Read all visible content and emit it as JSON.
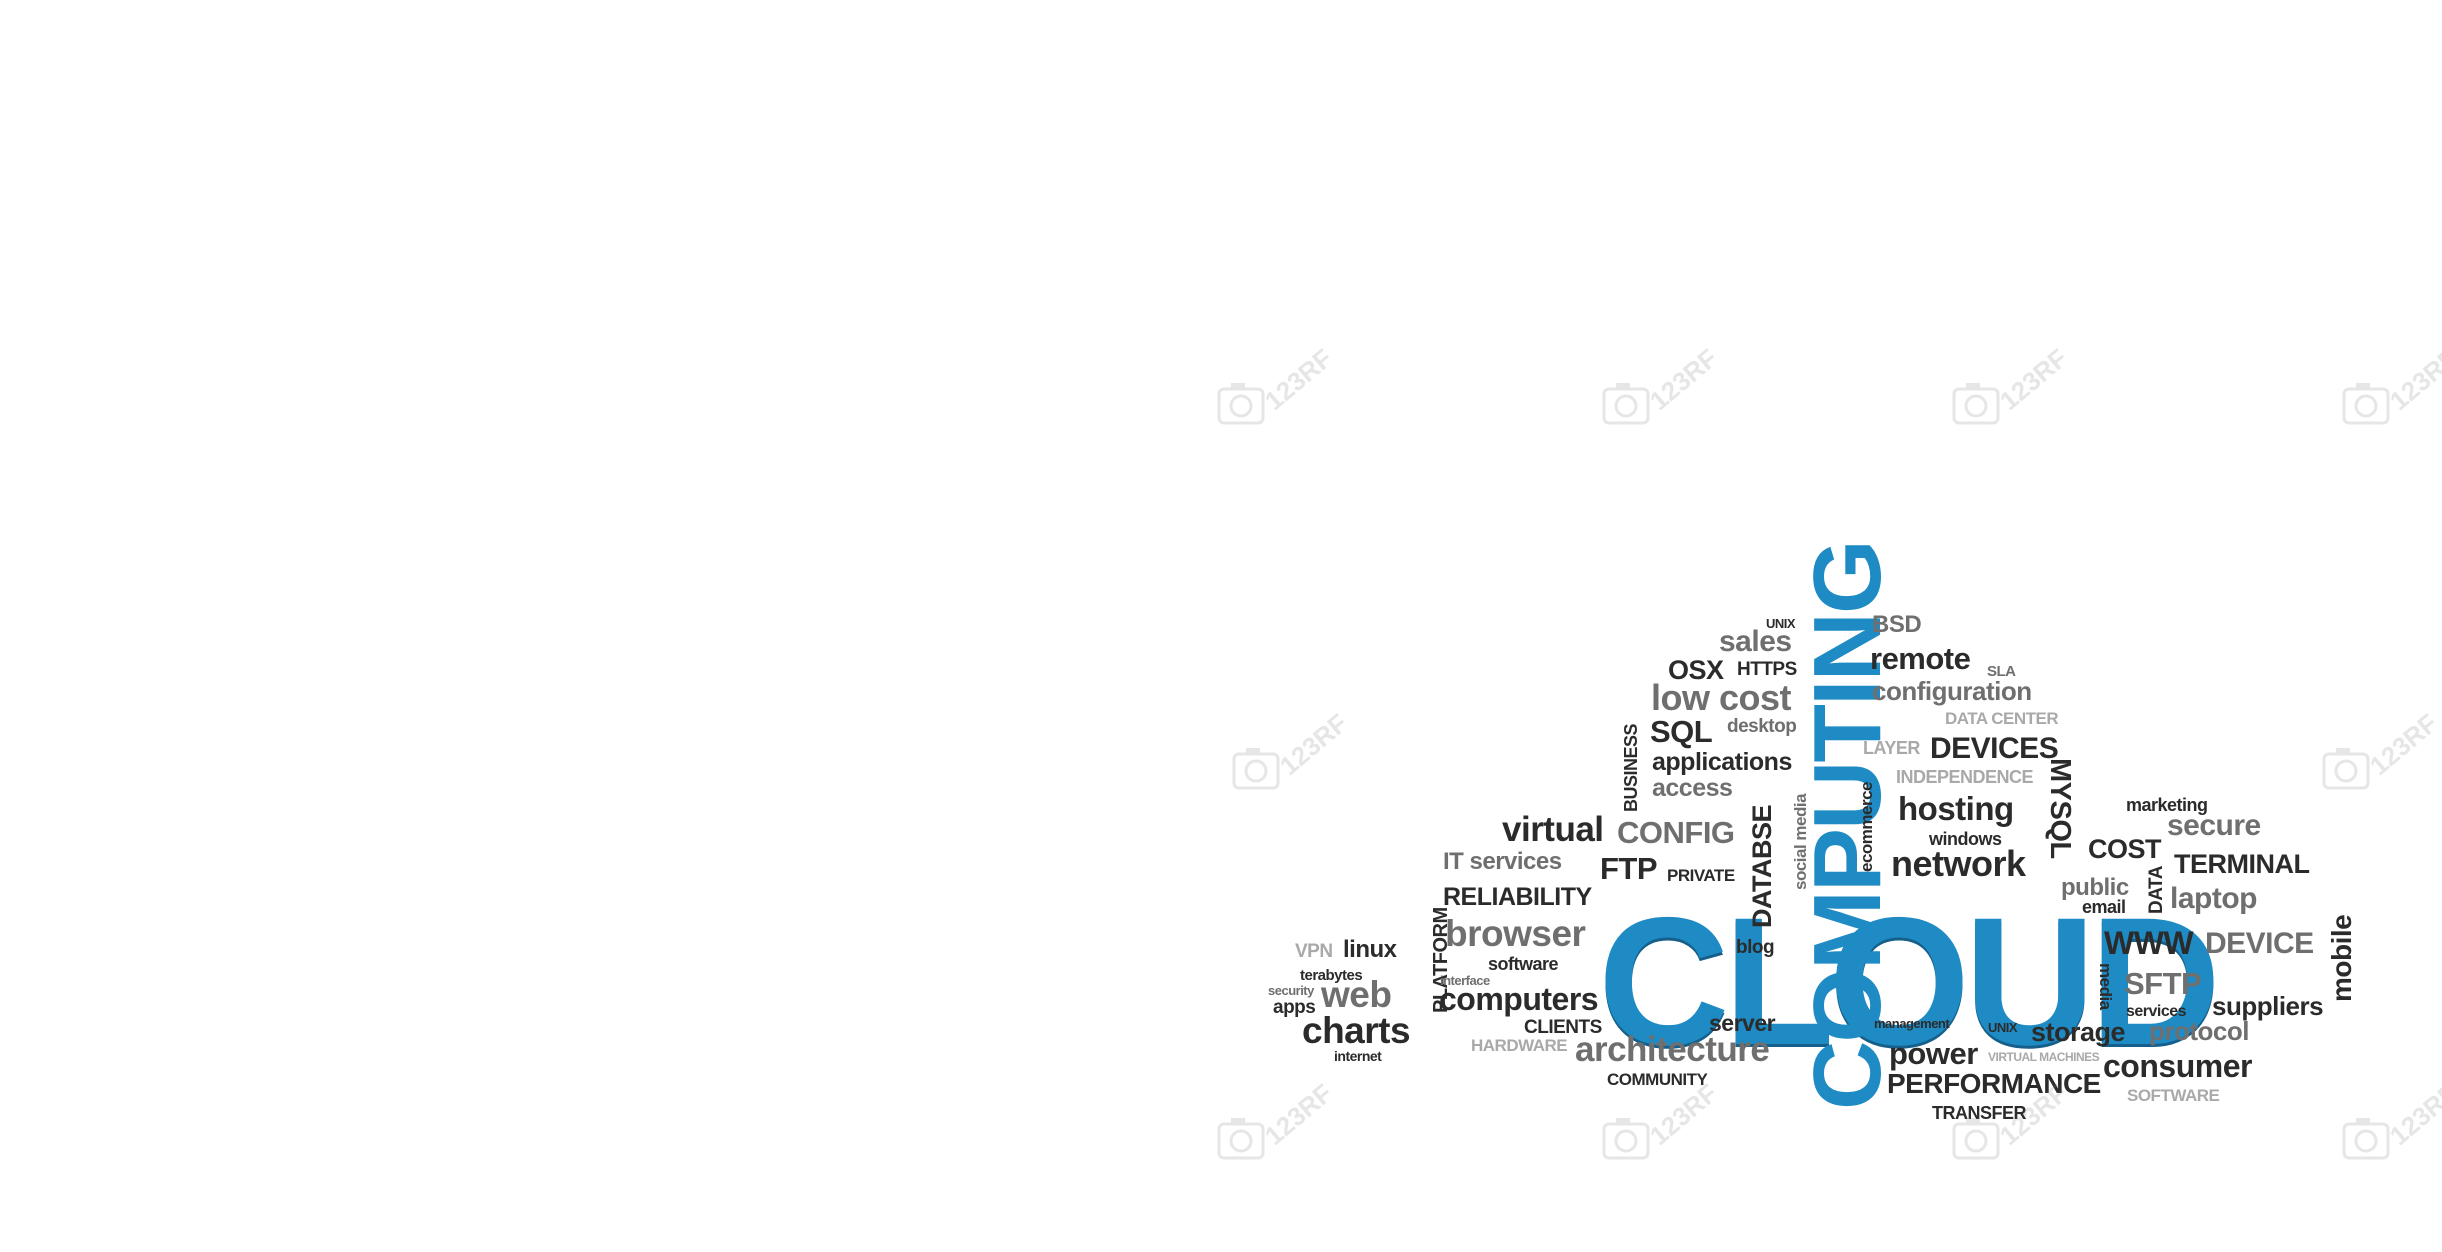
{
  "image": {
    "background": "#ffffff",
    "main_color": "#1f8bc4",
    "word_colors": {
      "dark": "#2b2b2b",
      "mid": "#6f6f6f",
      "light": "#a9a9a9"
    },
    "watermark": "123RF",
    "watermark_icon": "camera-icon"
  },
  "words": [
    {
      "text": "CLOUD",
      "color": "main"
    },
    {
      "text": "COMPUTING",
      "color": "main"
    },
    {
      "text": "UNIX",
      "color": "dark"
    },
    {
      "text": "sales",
      "color": "mid"
    },
    {
      "text": "BSD",
      "color": "mid"
    },
    {
      "text": "remote",
      "color": "dark"
    },
    {
      "text": "SLA",
      "color": "mid"
    },
    {
      "text": "OSX",
      "color": "dark"
    },
    {
      "text": "HTTPS",
      "color": "dark"
    },
    {
      "text": "configuration",
      "color": "mid"
    },
    {
      "text": "low cost",
      "color": "mid"
    },
    {
      "text": "SQL",
      "color": "dark"
    },
    {
      "text": "desktop",
      "color": "mid"
    },
    {
      "text": "DATA CENTER",
      "color": "light"
    },
    {
      "text": "BUSINESS",
      "color": "dark"
    },
    {
      "text": "applications",
      "color": "dark"
    },
    {
      "text": "LAYER",
      "color": "light"
    },
    {
      "text": "DEVICES",
      "color": "dark"
    },
    {
      "text": "access",
      "color": "mid"
    },
    {
      "text": "INDEPENDENCE",
      "color": "light"
    },
    {
      "text": "hosting",
      "color": "dark"
    },
    {
      "text": "marketing",
      "color": "dark"
    },
    {
      "text": "MYSQL",
      "color": "dark"
    },
    {
      "text": "secure",
      "color": "mid"
    },
    {
      "text": "virtual",
      "color": "dark"
    },
    {
      "text": "CONFIG",
      "color": "mid"
    },
    {
      "text": "social media",
      "color": "mid"
    },
    {
      "text": "ecommerce",
      "color": "dark"
    },
    {
      "text": "windows",
      "color": "dark"
    },
    {
      "text": "COST",
      "color": "dark"
    },
    {
      "text": "IT services",
      "color": "mid"
    },
    {
      "text": "FTP",
      "color": "dark"
    },
    {
      "text": "PRIVATE",
      "color": "dark"
    },
    {
      "text": "DATABSE",
      "color": "dark"
    },
    {
      "text": "network",
      "color": "dark"
    },
    {
      "text": "TERMINAL",
      "color": "dark"
    },
    {
      "text": "public",
      "color": "mid"
    },
    {
      "text": "DATA",
      "color": "dark"
    },
    {
      "text": "laptop",
      "color": "mid"
    },
    {
      "text": "RELIABILITY",
      "color": "dark"
    },
    {
      "text": "email",
      "color": "dark"
    },
    {
      "text": "PLATFORM",
      "color": "dark"
    },
    {
      "text": "mobile",
      "color": "dark"
    },
    {
      "text": "browser",
      "color": "mid"
    },
    {
      "text": "VPN",
      "color": "light"
    },
    {
      "text": "linux",
      "color": "dark"
    },
    {
      "text": "WWW",
      "color": "dark"
    },
    {
      "text": "DEVICE",
      "color": "mid"
    },
    {
      "text": "software",
      "color": "dark"
    },
    {
      "text": "blog",
      "color": "dark"
    },
    {
      "text": "terabytes",
      "color": "dark"
    },
    {
      "text": "media",
      "color": "dark"
    },
    {
      "text": "SFTP",
      "color": "mid"
    },
    {
      "text": "interface",
      "color": "mid"
    },
    {
      "text": "security",
      "color": "mid"
    },
    {
      "text": "web",
      "color": "mid"
    },
    {
      "text": "computers",
      "color": "dark"
    },
    {
      "text": "suppliers",
      "color": "dark"
    },
    {
      "text": "apps",
      "color": "dark"
    },
    {
      "text": "services",
      "color": "dark"
    },
    {
      "text": "server",
      "color": "dark"
    },
    {
      "text": "management",
      "color": "dark"
    },
    {
      "text": "charts",
      "color": "dark"
    },
    {
      "text": "CLIENTS",
      "color": "dark"
    },
    {
      "text": "UNIX",
      "color": "dark"
    },
    {
      "text": "storage",
      "color": "dark"
    },
    {
      "text": "protocol",
      "color": "mid"
    },
    {
      "text": "HARDWARE",
      "color": "light"
    },
    {
      "text": "architecture",
      "color": "mid"
    },
    {
      "text": "power",
      "color": "dark"
    },
    {
      "text": "VIRTUAL MACHINES",
      "color": "light"
    },
    {
      "text": "internet",
      "color": "dark"
    },
    {
      "text": "consumer",
      "color": "dark"
    },
    {
      "text": "COMMUNITY",
      "color": "dark"
    },
    {
      "text": "PERFORMANCE",
      "color": "dark"
    },
    {
      "text": "SOFTWARE",
      "color": "light"
    },
    {
      "text": "TRANSFER",
      "color": "dark"
    }
  ]
}
